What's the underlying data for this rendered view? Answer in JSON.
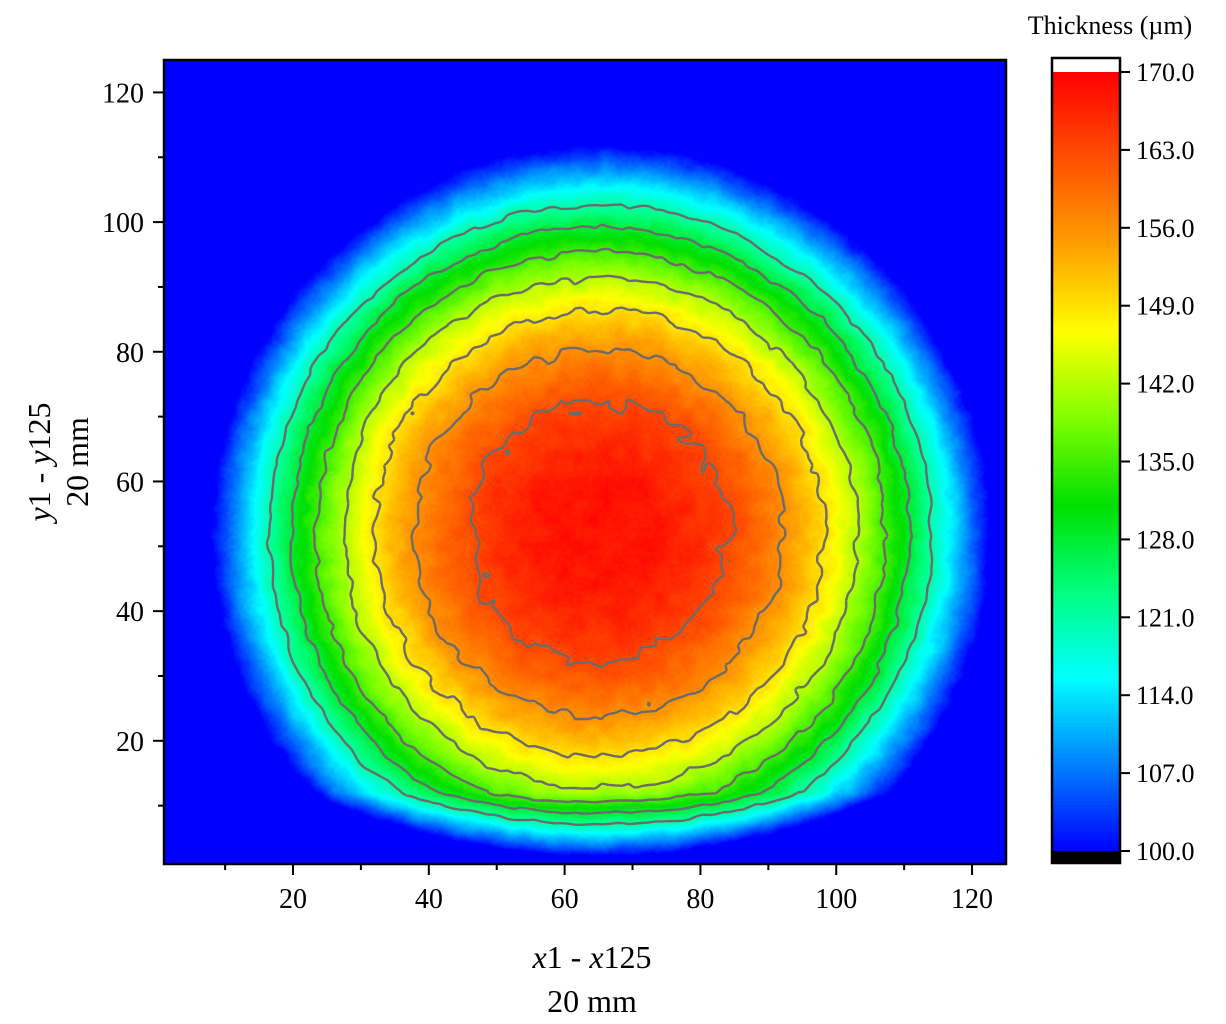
{
  "chart_data": {
    "type": "heatmap",
    "x_axis": {
      "range": [
        1,
        125
      ],
      "ticks": [
        20,
        40,
        60,
        80,
        100,
        120
      ],
      "title_italic_a": "x",
      "title_mid": "1 - ",
      "title_italic_b": "x",
      "title_end": "125",
      "subtitle": "20 mm"
    },
    "y_axis": {
      "range": [
        1,
        125
      ],
      "ticks": [
        20,
        40,
        60,
        80,
        100,
        120
      ],
      "title_italic_a": "y",
      "title_mid": "1 - ",
      "title_italic_b": "y",
      "title_end": "125",
      "subtitle": "20 mm"
    },
    "colorbar": {
      "title": "Thickness (µm)",
      "min": 100.0,
      "max": 170.0,
      "ticks": [
        "170.0",
        "163.0",
        "156.0",
        "149.0",
        "142.0",
        "135.0",
        "128.0",
        "121.0",
        "114.0",
        "107.0",
        "100.0"
      ],
      "colors": [
        "#0000ff",
        "#0080ff",
        "#00ffff",
        "#00ff80",
        "#00e000",
        "#80ff00",
        "#ffff00",
        "#ffa000",
        "#ff5000",
        "#ff0000"
      ],
      "over_color": "#ffffff",
      "under_color": "#000000"
    },
    "surface": {
      "description_values": "thickness map, peak ≈ 168 µm near (65, 52), lowest ≈ 105 µm near bottom-left corner",
      "peak": {
        "x": 65,
        "y": 52,
        "value": 168.5
      },
      "contour_levels": [
        121,
        128,
        135,
        142,
        149,
        156,
        163
      ]
    }
  }
}
